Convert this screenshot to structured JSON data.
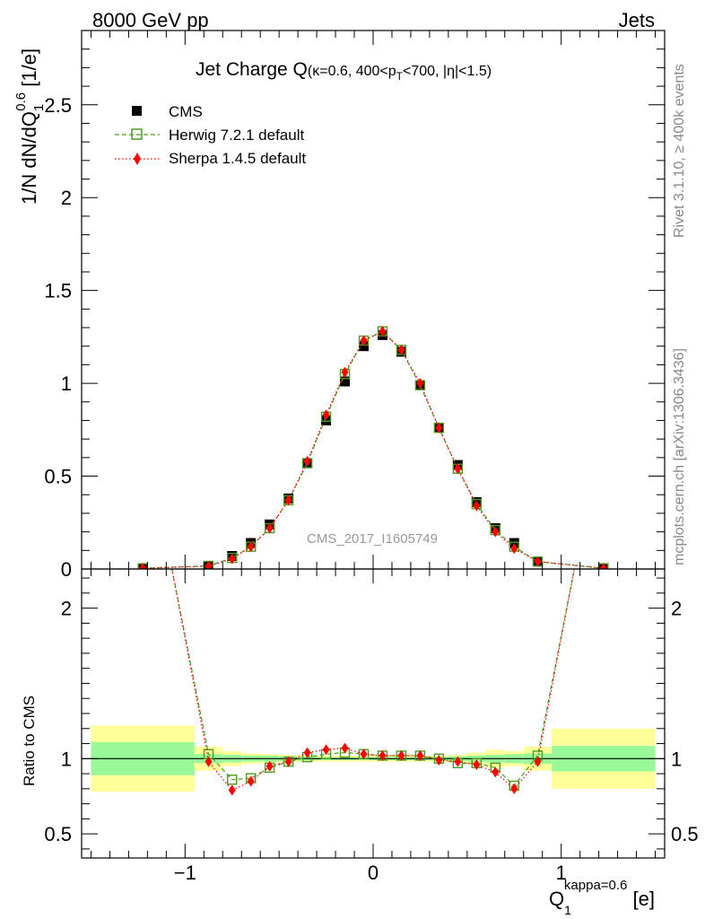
{
  "header": {
    "left": "8000 GeV pp",
    "right": "Jets"
  },
  "side_labels": {
    "rivet": "Rivet 3.1.10, ≥ 400k events",
    "mcplots": "mcplots.cern.ch [arXiv:1306.3436]"
  },
  "watermark": "CMS_2017_I1605749",
  "chart_data": {
    "type": "line",
    "title": {
      "main": "Jet Charge Q",
      "sub": "(κ=0.6, 400<p",
      "sub_idx": "T",
      "sub_tail": "<700, |η|<1.5)"
    },
    "ylabel": {
      "base": "1/N dN/dQ",
      "sub": "1",
      "sup": "0.6",
      "unit": " [1/e]"
    },
    "xlabel": {
      "base": "Q",
      "sub": "1",
      "sup": "kappa=0.6",
      "unit": " [e]"
    },
    "ratio_ylabel": "Ratio to CMS",
    "xlim": [
      -1.55,
      1.55
    ],
    "ylim": [
      0,
      2.9
    ],
    "ratio_ylim": [
      0.34,
      2.26
    ],
    "x_ticks": [
      "−1",
      "0",
      "1"
    ],
    "x_tick_values": [
      -1,
      0,
      1
    ],
    "y_ticks": [
      "0",
      "0.5",
      "1",
      "1.5",
      "2",
      "2.5"
    ],
    "y_tick_values": [
      0,
      0.5,
      1,
      1.5,
      2,
      2.5
    ],
    "ratio_ticks": [
      "0.5",
      "1",
      "2"
    ],
    "ratio_tick_values": [
      0.5,
      1,
      2
    ],
    "legend": [
      {
        "name": "CMS",
        "color": "#000000",
        "marker": "square-filled"
      },
      {
        "name": "Herwig 7.2.1 default",
        "color": "#4a9c1f",
        "marker": "square-open",
        "dash": "dashed"
      },
      {
        "name": "Sherpa 1.4.5 default",
        "color": "#ff0000",
        "marker": "diamond",
        "dash": "dotted"
      }
    ],
    "x": [
      -1.225,
      -0.875,
      -0.75,
      -0.65,
      -0.55,
      -0.45,
      -0.35,
      -0.25,
      -0.15,
      -0.05,
      0.05,
      0.15,
      0.25,
      0.35,
      0.45,
      0.55,
      0.65,
      0.75,
      0.875,
      1.225
    ],
    "series": [
      {
        "name": "CMS",
        "values": [
          0.004,
          0.015,
          0.07,
          0.14,
          0.24,
          0.38,
          0.57,
          0.8,
          1.01,
          1.2,
          1.26,
          1.17,
          0.99,
          0.76,
          0.56,
          0.36,
          0.22,
          0.14,
          0.04,
          0.004
        ]
      },
      {
        "name": "Herwig 7.2.1 default",
        "values": [
          0.004,
          0.017,
          0.06,
          0.12,
          0.22,
          0.37,
          0.57,
          0.82,
          1.05,
          1.23,
          1.28,
          1.18,
          0.99,
          0.76,
          0.54,
          0.35,
          0.21,
          0.12,
          0.04,
          0.004
        ]
      },
      {
        "name": "Sherpa 1.4.5 default",
        "values": [
          0.004,
          0.015,
          0.055,
          0.12,
          0.22,
          0.37,
          0.58,
          0.83,
          1.06,
          1.23,
          1.28,
          1.18,
          1.0,
          0.76,
          0.54,
          0.34,
          0.2,
          0.11,
          0.04,
          0.004
        ]
      }
    ],
    "ratio_series": [
      {
        "name": "Herwig 7.2.1 default",
        "x": [
          -1.07,
          -0.875,
          -0.75,
          -0.65,
          -0.55,
          -0.45,
          -0.35,
          -0.25,
          -0.15,
          -0.05,
          0.05,
          0.15,
          0.25,
          0.35,
          0.45,
          0.55,
          0.65,
          0.75,
          0.875,
          1.07
        ],
        "values": [
          2.26,
          1.03,
          0.86,
          0.87,
          0.94,
          0.98,
          1.01,
          1.03,
          1.04,
          1.03,
          1.02,
          1.02,
          1.02,
          1.0,
          0.97,
          0.97,
          0.94,
          0.82,
          1.02,
          2.26
        ]
      },
      {
        "name": "Sherpa 1.4.5 default",
        "x": [
          -1.07,
          -0.875,
          -0.75,
          -0.65,
          -0.55,
          -0.45,
          -0.35,
          -0.25,
          -0.15,
          -0.05,
          0.05,
          0.15,
          0.25,
          0.35,
          0.45,
          0.55,
          0.65,
          0.75,
          0.875,
          1.07
        ],
        "values": [
          2.26,
          0.98,
          0.79,
          0.85,
          0.95,
          0.98,
          1.04,
          1.06,
          1.07,
          1.03,
          1.02,
          1.02,
          1.02,
          0.99,
          0.98,
          0.96,
          0.91,
          0.8,
          0.98,
          2.26
        ]
      }
    ],
    "bins": [
      -1.5,
      -0.95,
      -0.8,
      -0.7,
      -0.6,
      -0.5,
      -0.4,
      -0.3,
      -0.2,
      -0.1,
      0,
      0.1,
      0.2,
      0.3,
      0.4,
      0.5,
      0.6,
      0.7,
      0.8,
      0.95,
      1.5
    ],
    "band_inner": [
      0.11,
      0.03,
      0.025,
      0.02,
      0.02,
      0.015,
      0.012,
      0.01,
      0.01,
      0.01,
      0.01,
      0.01,
      0.01,
      0.012,
      0.015,
      0.02,
      0.025,
      0.03,
      0.035,
      0.085
    ],
    "band_outer": [
      0.22,
      0.08,
      0.05,
      0.035,
      0.03,
      0.025,
      0.02,
      0.02,
      0.02,
      0.02,
      0.02,
      0.02,
      0.02,
      0.02,
      0.025,
      0.04,
      0.06,
      0.05,
      0.08,
      0.2
    ],
    "colors": {
      "herwig": "#4a9c1f",
      "sherpa": "#ff0000",
      "band_inner": "#99f999",
      "band_outer": "#ffff99"
    }
  }
}
